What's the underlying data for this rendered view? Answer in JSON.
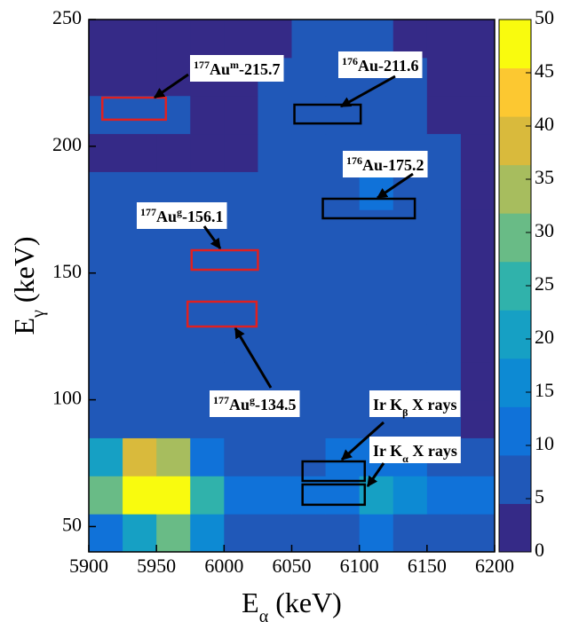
{
  "chart_data": {
    "type": "heatmap",
    "x_label_parts": [
      {
        "text": "E"
      },
      {
        "text": "α",
        "script": "sub"
      },
      {
        "text": " (keV)"
      }
    ],
    "y_label_parts": [
      {
        "text": "E"
      },
      {
        "text": "γ",
        "script": "sub"
      },
      {
        "text": " (keV)"
      }
    ],
    "xlim": [
      5900,
      6200
    ],
    "ylim": [
      40,
      250
    ],
    "xticks": [
      5900,
      5950,
      6000,
      6050,
      6100,
      6150,
      6200
    ],
    "yticks": [
      50,
      100,
      150,
      200,
      250
    ],
    "xbins": [
      5900,
      5925,
      5950,
      5975,
      6000,
      6025,
      6050,
      6075,
      6100,
      6125,
      6150,
      6175,
      6200
    ],
    "ybins": [
      40,
      55,
      70,
      85,
      100,
      115,
      130,
      145,
      160,
      175,
      190,
      205,
      220,
      235,
      250
    ],
    "z": [
      [
        12,
        20,
        30,
        15,
        6,
        5,
        5,
        7,
        8,
        7,
        6,
        5
      ],
      [
        30,
        50,
        50,
        25,
        10,
        8,
        8,
        12,
        18,
        15,
        12,
        10
      ],
      [
        20,
        40,
        35,
        12,
        6,
        5,
        5,
        8,
        10,
        8,
        6,
        5
      ],
      [
        3,
        3,
        3,
        3,
        3,
        3,
        4,
        6,
        6,
        4,
        3,
        2
      ],
      [
        3,
        3,
        3,
        3,
        3,
        4,
        4,
        6,
        6,
        4,
        3,
        2
      ],
      [
        3,
        3,
        3,
        3,
        4,
        4,
        4,
        6,
        7,
        4,
        3,
        2
      ],
      [
        3,
        3,
        4,
        3,
        5,
        4,
        4,
        6,
        7,
        4,
        3,
        2
      ],
      [
        3,
        3,
        4,
        4,
        5,
        4,
        4,
        6,
        6,
        4,
        3,
        2
      ],
      [
        3,
        3,
        3,
        3,
        3,
        3,
        4,
        6,
        7,
        4,
        3,
        2
      ],
      [
        3,
        3,
        3,
        3,
        3,
        3,
        4,
        7,
        9,
        5,
        3,
        2
      ],
      [
        2,
        2,
        2,
        2,
        2,
        3,
        4,
        5,
        6,
        4,
        3,
        2
      ],
      [
        3,
        4,
        3,
        2,
        2,
        3,
        5,
        6,
        6,
        4,
        2,
        2
      ],
      [
        2,
        2,
        2,
        2,
        2,
        3,
        4,
        4,
        4,
        3,
        2,
        2
      ],
      [
        2,
        2,
        2,
        2,
        2,
        2,
        3,
        3,
        3,
        2,
        2,
        1
      ]
    ],
    "clim": [
      0,
      50
    ],
    "cticks": [
      0,
      5,
      10,
      15,
      20,
      25,
      30,
      35,
      40,
      45,
      50
    ],
    "colormap": [
      "#352a87",
      "#2058b8",
      "#1072d9",
      "#0d8ad3",
      "#16a0c4",
      "#30b2ab",
      "#69bb86",
      "#a7bd5e",
      "#d9ba3c",
      "#fcc831",
      "#f9fb0e"
    ],
    "annotations": [
      {
        "color": "#e02020",
        "x": [
          5910,
          5957
        ],
        "y": [
          210.5,
          219.2
        ],
        "parts": [
          {
            "text": "177",
            "script": "super"
          },
          {
            "text": "Au"
          },
          {
            "text": "m",
            "script": "super"
          },
          {
            "text": "-215.7"
          }
        ]
      },
      {
        "color": "#000000",
        "x": [
          6052,
          6101
        ],
        "y": [
          209,
          216.4
        ],
        "parts": [
          {
            "text": "176",
            "script": "super"
          },
          {
            "text": "Au-211.6"
          }
        ]
      },
      {
        "color": "#000000",
        "x": [
          6073,
          6141
        ],
        "y": [
          171.6,
          179.3
        ],
        "parts": [
          {
            "text": "176",
            "script": "super"
          },
          {
            "text": "Au-175.2"
          }
        ]
      },
      {
        "color": "#e02020",
        "x": [
          5976,
          6025
        ],
        "y": [
          151.3,
          159
        ],
        "parts": [
          {
            "text": "177",
            "script": "super"
          },
          {
            "text": "Au"
          },
          {
            "text": "g",
            "script": "super"
          },
          {
            "text": "-156.1"
          }
        ]
      },
      {
        "color": "#e02020",
        "x": [
          5973,
          6024
        ],
        "y": [
          128.9,
          138.7
        ],
        "parts": [
          {
            "text": "177",
            "script": "super"
          },
          {
            "text": "Au"
          },
          {
            "text": "g",
            "script": "super"
          },
          {
            "text": "-134.5"
          }
        ]
      },
      {
        "color": "#000000",
        "x": [
          6058,
          6104
        ],
        "y": [
          68,
          75.7
        ],
        "parts": [
          {
            "text": "Ir K"
          },
          {
            "text": "β",
            "script": "sub"
          },
          {
            "text": " X rays"
          }
        ]
      },
      {
        "color": "#000000",
        "x": [
          6058,
          6104
        ],
        "y": [
          58.6,
          66.6
        ],
        "parts": [
          {
            "text": "Ir K"
          },
          {
            "text": "α",
            "script": "sub"
          },
          {
            "text": " X rays"
          }
        ]
      }
    ]
  }
}
